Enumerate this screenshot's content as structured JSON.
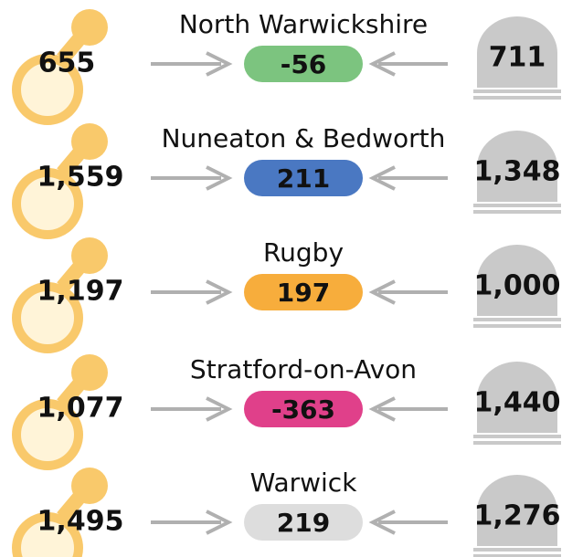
{
  "rows": [
    {
      "area": "North Warwickshire",
      "births": "655",
      "net": "-56",
      "deaths": "711",
      "color": "#7cc47f"
    },
    {
      "area": "Nuneaton & Bedworth",
      "births": "1,559",
      "net": "211",
      "deaths": "1,348",
      "color": "#4a78c2"
    },
    {
      "area": "Rugby",
      "births": "1,197",
      "net": "197",
      "deaths": "1,000",
      "color": "#f7ad3c"
    },
    {
      "area": "Stratford-on-Avon",
      "births": "1,077",
      "net": "-363",
      "deaths": "1,440",
      "color": "#e0408a"
    },
    {
      "area": "Warwick",
      "births": "1,495",
      "net": "219",
      "deaths": "1,276",
      "color": "#dddddd"
    }
  ]
}
